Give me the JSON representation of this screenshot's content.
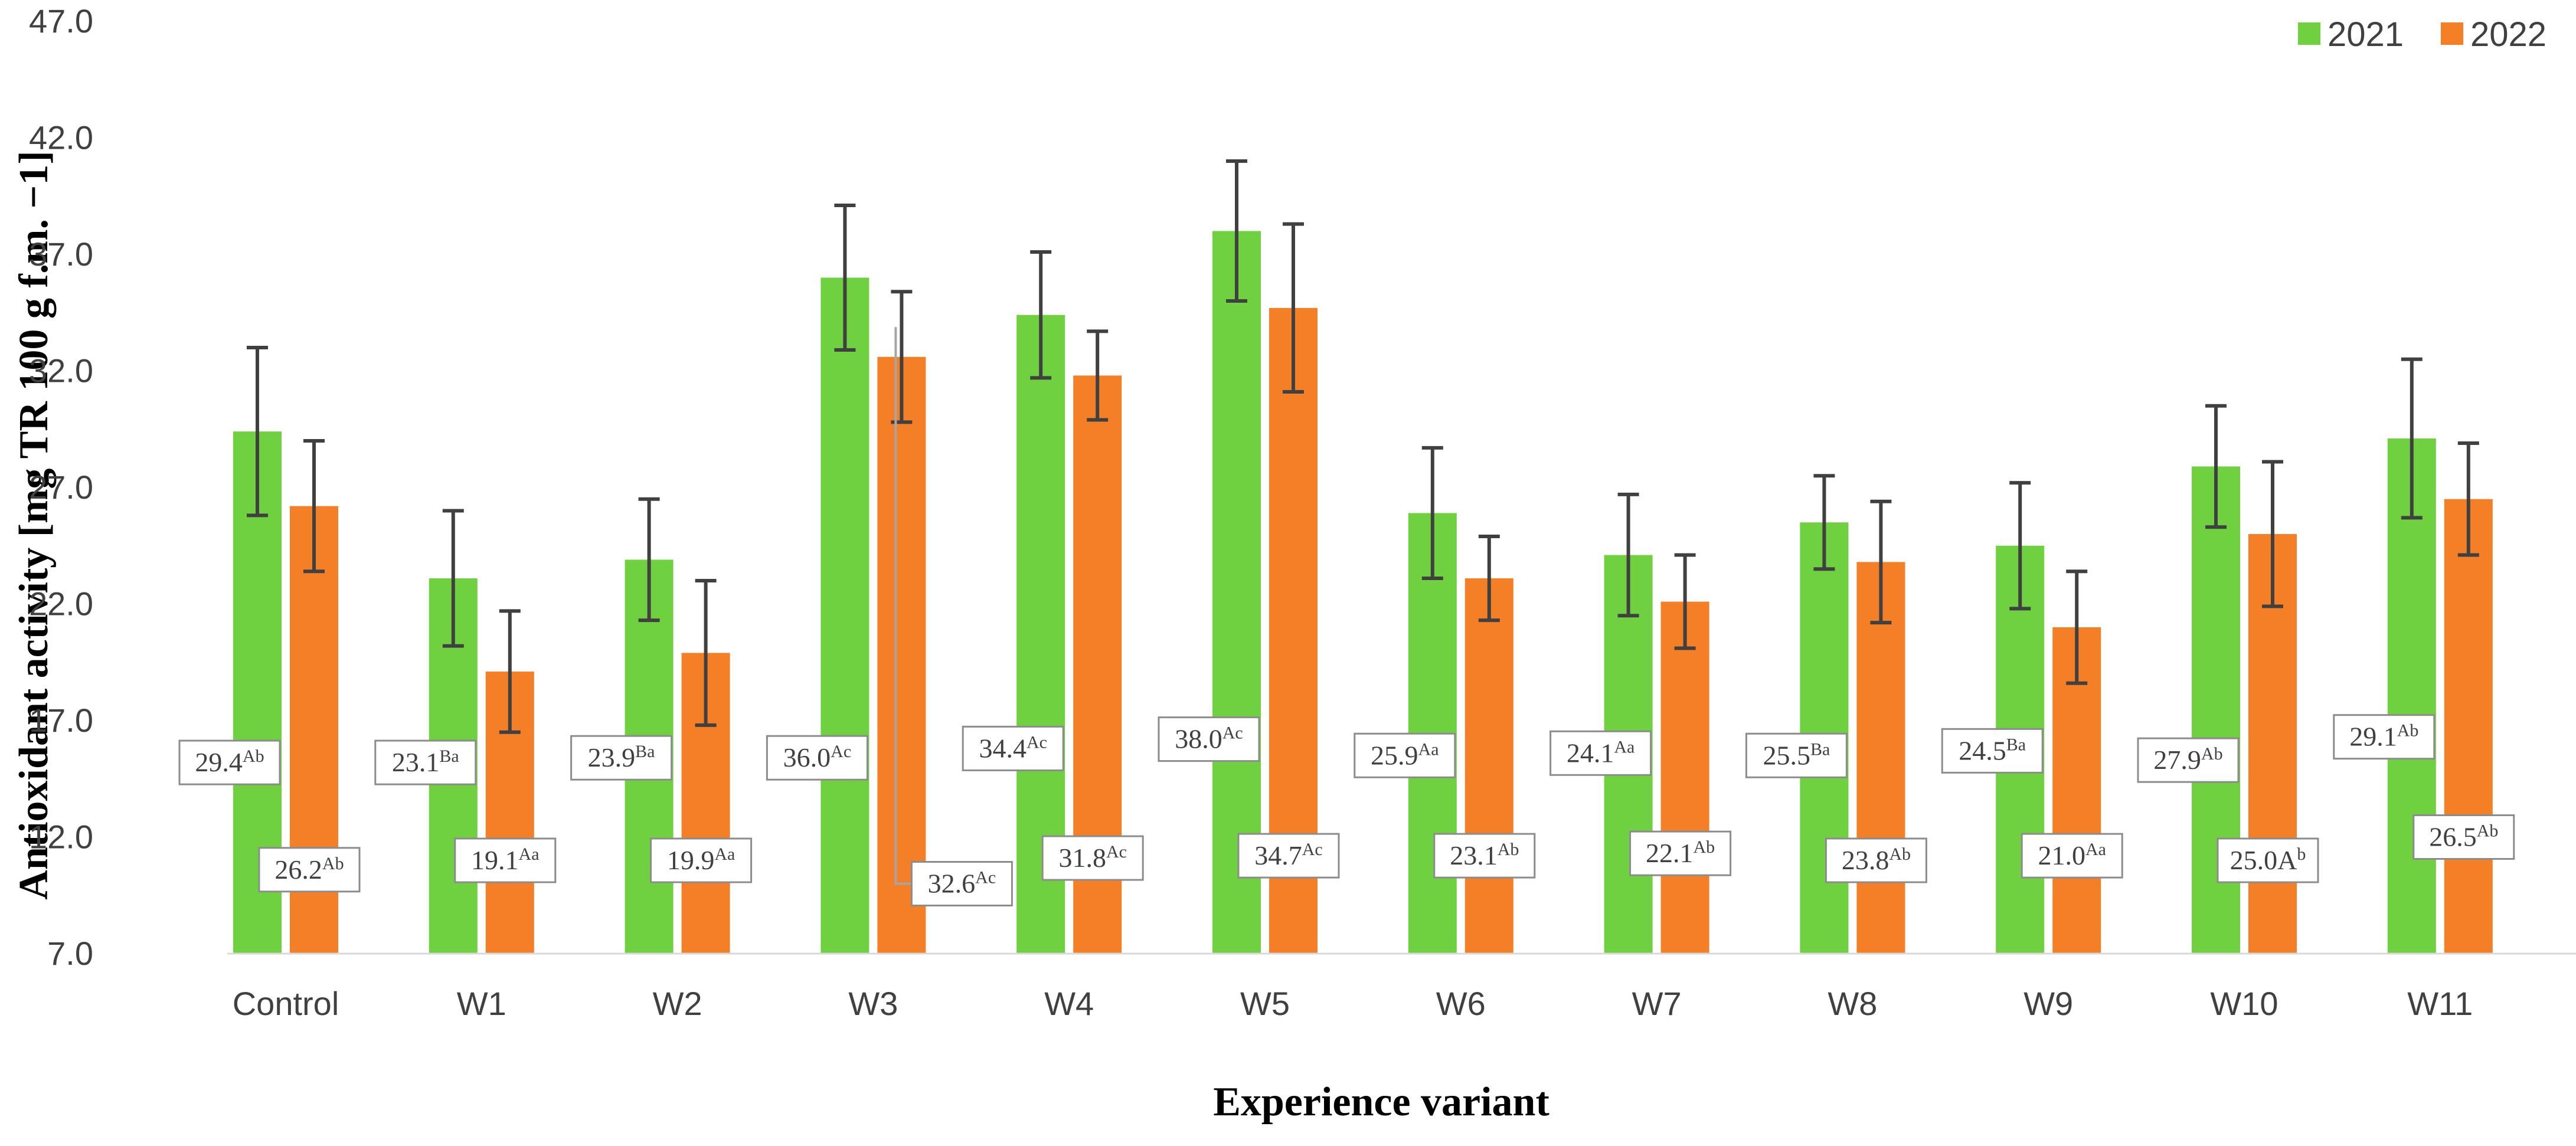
{
  "chart_data": {
    "type": "bar",
    "title": "",
    "xlabel": "Experience variant",
    "ylabel": "Antioxidant activity [mg TR 100 g f.m. −1]",
    "ylim": [
      7.0,
      47.0
    ],
    "yticks": [
      "7.0",
      "12.0",
      "17.0",
      "22.0",
      "27.0",
      "32.0",
      "37.0",
      "42.0",
      "47.0"
    ],
    "grid": false,
    "legend_position": "top-right",
    "categories": [
      "Control",
      "W1",
      "W2",
      "W3",
      "W4",
      "W5",
      "W6",
      "W7",
      "W8",
      "W9",
      "W10",
      "W11"
    ],
    "series": [
      {
        "name": "2021",
        "color": "#6fd140",
        "values": [
          29.4,
          23.1,
          23.9,
          36.0,
          34.4,
          38.0,
          25.9,
          24.1,
          25.5,
          24.5,
          27.9,
          29.1
        ],
        "error": [
          3.6,
          2.9,
          2.6,
          3.1,
          2.7,
          3.0,
          2.8,
          2.6,
          2.0,
          2.7,
          2.6,
          3.4
        ],
        "label_value": [
          "29.4",
          "23.1",
          "23.9",
          "36.0",
          "34.4",
          "38.0",
          "25.9",
          "24.1",
          "25.5",
          "24.5",
          "27.9",
          "29.1"
        ],
        "label_sup": [
          "Ab",
          "Ba",
          "Ba",
          "Ac",
          "Ac",
          "Ac",
          "Aa",
          "Aa",
          "Ba",
          "Ba",
          "Ab",
          "Ab"
        ]
      },
      {
        "name": "2022",
        "color": "#f57f27",
        "values": [
          26.2,
          19.1,
          19.9,
          32.6,
          31.8,
          34.7,
          23.1,
          22.1,
          23.8,
          21.0,
          25.0,
          26.5
        ],
        "error": [
          2.8,
          2.6,
          3.1,
          2.8,
          1.9,
          3.6,
          1.8,
          2.0,
          2.6,
          2.4,
          3.1,
          2.4
        ],
        "label_value": [
          "26.2",
          "19.1",
          "19.9",
          "32.6",
          "31.8",
          "34.7",
          "23.1",
          "22.1",
          "23.8",
          "21.0",
          "25.0A",
          "26.5"
        ],
        "label_sup": [
          "Ab",
          "Aa",
          "Aa",
          "Ac",
          "Ac",
          "Ac",
          "Ab",
          "Ab",
          "Ab",
          "Aa",
          "b",
          "Ab"
        ]
      }
    ]
  }
}
